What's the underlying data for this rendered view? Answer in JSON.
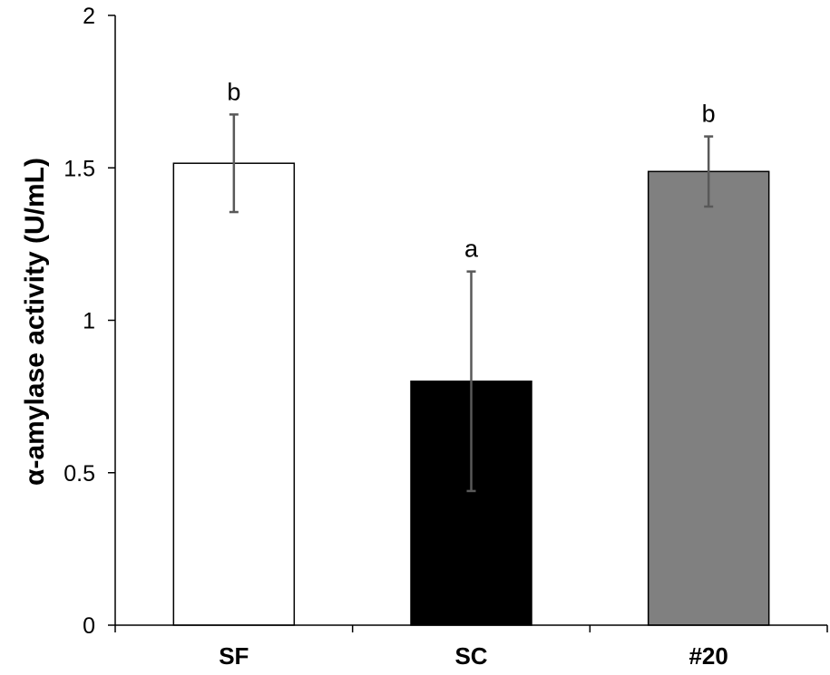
{
  "chart_data": {
    "type": "bar",
    "title": "",
    "xlabel": "",
    "ylabel": "α-amylase activity (U/mL)",
    "ylim": [
      0,
      2
    ],
    "yticks": [
      0,
      0.5,
      1,
      1.5,
      2
    ],
    "ytick_labels": [
      "0",
      "0.5",
      "1",
      "1.5",
      "2"
    ],
    "grid": false,
    "categories": [
      "SF",
      "SC",
      "#20"
    ],
    "values": [
      1.515,
      0.8,
      1.488
    ],
    "errors": [
      0.16,
      0.36,
      0.115
    ],
    "significance_labels": [
      "b",
      "a",
      "b"
    ],
    "bar_colors": [
      "#ffffff",
      "#000000",
      "#808080"
    ],
    "error_bar_color": "#595959"
  }
}
